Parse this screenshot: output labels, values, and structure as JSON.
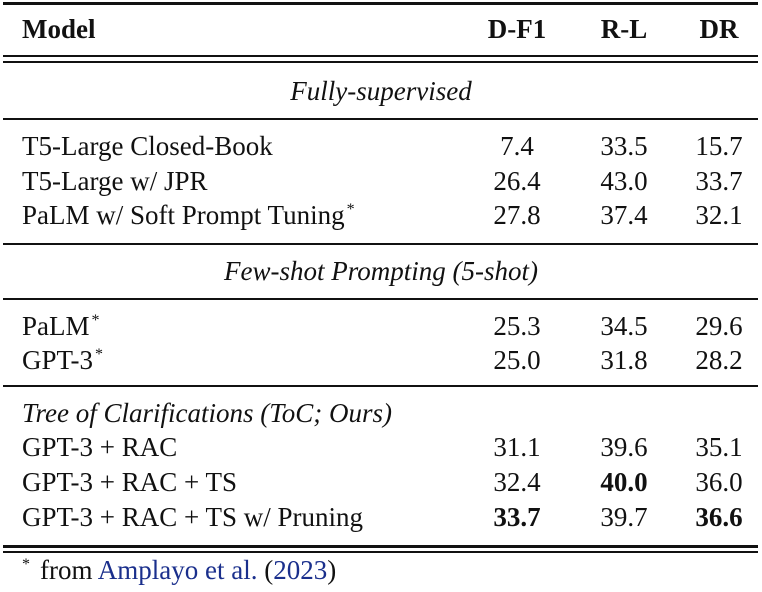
{
  "header": {
    "model": "Model",
    "dF1": "D-F1",
    "rL": "R-L",
    "dr": "DR"
  },
  "sections": {
    "fully": "Fully-supervised",
    "fewshot": "Few-shot Prompting (5-shot)",
    "toc": "Tree of Clarifications (ToC; Ours)"
  },
  "rows": {
    "t5cb": {
      "model": "T5-Large Closed-Book",
      "dF1": "7.4",
      "rL": "33.5",
      "dr": "15.7"
    },
    "t5jpr": {
      "model": "T5-Large w/ JPR",
      "dF1": "26.4",
      "rL": "43.0",
      "dr": "33.7"
    },
    "palmspt": {
      "model": "PaLM w/ Soft Prompt Tuning",
      "star": "*",
      "dF1": "27.8",
      "rL": "37.4",
      "dr": "32.1"
    },
    "palm": {
      "model": "PaLM",
      "star": "*",
      "dF1": "25.3",
      "rL": "34.5",
      "dr": "29.6"
    },
    "gpt3": {
      "model": "GPT-3",
      "star": "*",
      "dF1": "25.0",
      "rL": "31.8",
      "dr": "28.2"
    },
    "rac": {
      "model": "GPT-3 + RAC",
      "dF1": "31.1",
      "rL": "39.6",
      "dr": "35.1"
    },
    "racts": {
      "model": "GPT-3 + RAC + TS",
      "dF1": "32.4",
      "rL": "40.0",
      "dr": "36.0"
    },
    "ractsp": {
      "model": "GPT-3 + RAC + TS w/ Pruning",
      "dF1": "33.7",
      "rL": "39.7",
      "dr": "36.6"
    }
  },
  "footnote": {
    "star": "*",
    "text": "from",
    "citation_name": "Amplayo et al.",
    "open": "(",
    "year": "2023",
    "close": ")"
  }
}
